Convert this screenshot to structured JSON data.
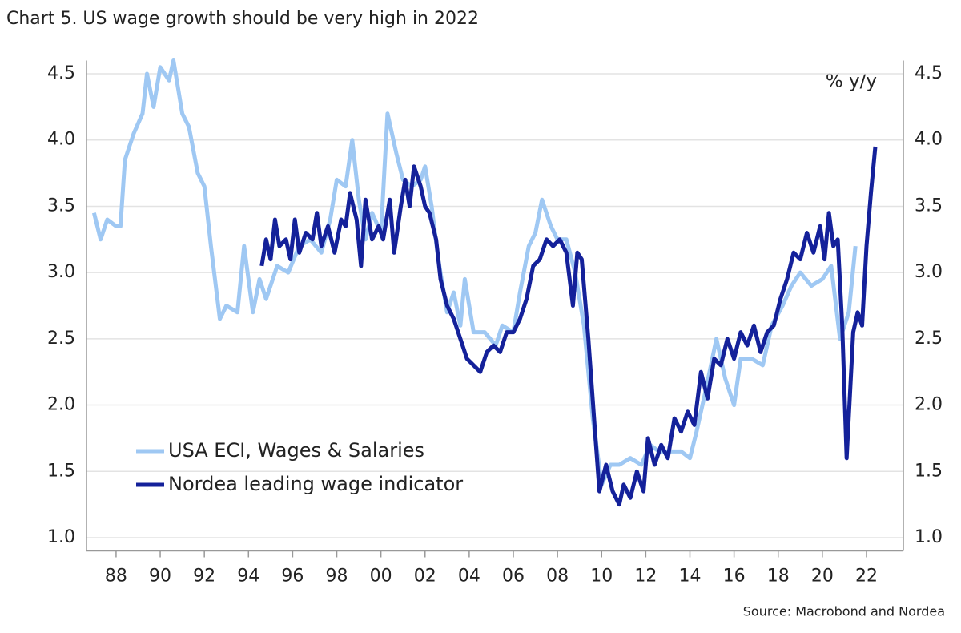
{
  "chart_data": {
    "type": "line",
    "title": "Chart 5. US wage growth should be very high in 2022",
    "annotation": "% y/y",
    "source": "Source: Macrobond and Nordea",
    "xlim": [
      1986.66,
      2023.67
    ],
    "xticks": [
      {
        "value": 1988,
        "label": "88"
      },
      {
        "value": 1990,
        "label": "90"
      },
      {
        "value": 1992,
        "label": "92"
      },
      {
        "value": 1994,
        "label": "94"
      },
      {
        "value": 1996,
        "label": "96"
      },
      {
        "value": 1998,
        "label": "98"
      },
      {
        "value": 2000,
        "label": "00"
      },
      {
        "value": 2002,
        "label": "02"
      },
      {
        "value": 2004,
        "label": "04"
      },
      {
        "value": 2006,
        "label": "06"
      },
      {
        "value": 2008,
        "label": "08"
      },
      {
        "value": 2010,
        "label": "10"
      },
      {
        "value": 2012,
        "label": "12"
      },
      {
        "value": 2014,
        "label": "14"
      },
      {
        "value": 2016,
        "label": "16"
      },
      {
        "value": 2018,
        "label": "18"
      },
      {
        "value": 2020,
        "label": "20"
      },
      {
        "value": 2022,
        "label": "22"
      }
    ],
    "ylim": [
      0.9,
      4.6
    ],
    "yticks": [
      {
        "value": 1,
        "label": "1.0"
      },
      1.5,
      {
        "value": 2,
        "label": "2.0"
      },
      2.5,
      {
        "value": 3,
        "label": "3.0"
      },
      3.5,
      {
        "value": 4,
        "label": "4.0"
      },
      4.5
    ],
    "grid": true,
    "series": [
      {
        "name": "USA ECI, Wages & Salaries",
        "color": "#9fc8f3",
        "x": [
          1987.0,
          1987.3,
          1987.6,
          1988.0,
          1988.2,
          1988.4,
          1988.8,
          1989.2,
          1989.4,
          1989.7,
          1990.0,
          1990.4,
          1990.6,
          1991.0,
          1991.3,
          1991.7,
          1992.0,
          1992.3,
          1992.7,
          1993.0,
          1993.5,
          1993.8,
          1994.2,
          1994.5,
          1994.8,
          1995.3,
          1995.8,
          1996.3,
          1996.8,
          1997.3,
          1997.7,
          1998.0,
          1998.4,
          1998.7,
          1999.0,
          1999.3,
          1999.6,
          2000.0,
          2000.3,
          2000.7,
          2001.0,
          2001.4,
          2001.8,
          2002.0,
          2002.3,
          2002.6,
          2003.0,
          2003.3,
          2003.6,
          2003.8,
          2004.2,
          2004.7,
          2005.2,
          2005.5,
          2006.0,
          2006.3,
          2006.7,
          2007.0,
          2007.3,
          2007.7,
          2008.0,
          2008.4,
          2008.8,
          2009.2,
          2009.6,
          2010.0,
          2010.4,
          2010.8,
          2011.3,
          2011.8,
          2012.2,
          2012.6,
          2013.0,
          2013.6,
          2014.0,
          2014.3,
          2014.7,
          2015.2,
          2015.6,
          2016.0,
          2016.3,
          2016.8,
          2017.3,
          2017.7,
          2018.2,
          2018.6,
          2019.0,
          2019.5,
          2020.0,
          2020.4,
          2020.8,
          2021.2,
          2021.5
        ],
        "values": [
          3.45,
          3.25,
          3.4,
          3.35,
          3.35,
          3.85,
          4.05,
          4.2,
          4.5,
          4.25,
          4.55,
          4.45,
          4.6,
          4.2,
          4.1,
          3.75,
          3.65,
          3.2,
          2.65,
          2.75,
          2.7,
          3.2,
          2.7,
          2.95,
          2.8,
          3.05,
          3.0,
          3.2,
          3.25,
          3.15,
          3.4,
          3.7,
          3.65,
          4.0,
          3.55,
          3.25,
          3.45,
          3.3,
          4.2,
          3.9,
          3.7,
          3.65,
          3.7,
          3.8,
          3.5,
          3.1,
          2.7,
          2.85,
          2.6,
          2.95,
          2.55,
          2.55,
          2.45,
          2.6,
          2.55,
          2.85,
          3.2,
          3.3,
          3.55,
          3.35,
          3.25,
          3.25,
          3.0,
          2.6,
          1.9,
          1.4,
          1.55,
          1.55,
          1.6,
          1.55,
          1.7,
          1.65,
          1.65,
          1.65,
          1.6,
          1.8,
          2.1,
          2.5,
          2.2,
          2.0,
          2.35,
          2.35,
          2.3,
          2.6,
          2.75,
          2.9,
          3.0,
          2.9,
          2.95,
          3.05,
          2.5,
          2.7,
          3.2
        ]
      },
      {
        "name": "Nordea leading wage indicator",
        "color": "#14219a",
        "x": [
          1994.6,
          1994.8,
          1995.0,
          1995.2,
          1995.4,
          1995.7,
          1995.9,
          1996.1,
          1996.3,
          1996.6,
          1996.9,
          1997.1,
          1997.3,
          1997.6,
          1997.9,
          1998.2,
          1998.4,
          1998.6,
          1998.9,
          1999.1,
          1999.3,
          1999.6,
          1999.9,
          2000.1,
          2000.4,
          2000.6,
          2000.9,
          2001.1,
          2001.3,
          2001.5,
          2001.8,
          2002.0,
          2002.2,
          2002.5,
          2002.7,
          2003.0,
          2003.3,
          2003.6,
          2003.9,
          2004.2,
          2004.5,
          2004.8,
          2005.1,
          2005.4,
          2005.7,
          2006.0,
          2006.3,
          2006.6,
          2006.9,
          2007.2,
          2007.5,
          2007.8,
          2008.1,
          2008.4,
          2008.7,
          2008.9,
          2009.1,
          2009.4,
          2009.7,
          2009.9,
          2010.2,
          2010.5,
          2010.8,
          2011.0,
          2011.3,
          2011.6,
          2011.9,
          2012.1,
          2012.4,
          2012.7,
          2013.0,
          2013.3,
          2013.6,
          2013.9,
          2014.2,
          2014.5,
          2014.8,
          2015.1,
          2015.4,
          2015.7,
          2016.0,
          2016.3,
          2016.6,
          2016.9,
          2017.2,
          2017.5,
          2017.8,
          2018.1,
          2018.4,
          2018.7,
          2019.0,
          2019.3,
          2019.6,
          2019.9,
          2020.1,
          2020.3,
          2020.5,
          2020.7,
          2020.9,
          2021.1,
          2021.4,
          2021.6,
          2021.8,
          2022.0,
          2022.2,
          2022.4
        ],
        "values": [
          3.05,
          3.25,
          3.1,
          3.4,
          3.2,
          3.25,
          3.1,
          3.4,
          3.15,
          3.3,
          3.25,
          3.45,
          3.2,
          3.35,
          3.15,
          3.4,
          3.35,
          3.6,
          3.4,
          3.05,
          3.55,
          3.25,
          3.35,
          3.25,
          3.55,
          3.15,
          3.5,
          3.7,
          3.5,
          3.8,
          3.65,
          3.5,
          3.45,
          3.25,
          2.95,
          2.75,
          2.65,
          2.5,
          2.35,
          2.3,
          2.25,
          2.4,
          2.45,
          2.4,
          2.55,
          2.55,
          2.65,
          2.8,
          3.05,
          3.1,
          3.25,
          3.2,
          3.25,
          3.15,
          2.75,
          3.15,
          3.1,
          2.5,
          1.8,
          1.35,
          1.55,
          1.35,
          1.25,
          1.4,
          1.3,
          1.5,
          1.35,
          1.75,
          1.55,
          1.7,
          1.6,
          1.9,
          1.8,
          1.95,
          1.85,
          2.25,
          2.05,
          2.35,
          2.3,
          2.5,
          2.35,
          2.55,
          2.45,
          2.6,
          2.4,
          2.55,
          2.6,
          2.8,
          2.95,
          3.15,
          3.1,
          3.3,
          3.15,
          3.35,
          3.1,
          3.45,
          3.2,
          3.25,
          2.6,
          1.6,
          2.55,
          2.7,
          2.6,
          3.2,
          3.6,
          3.95
        ]
      }
    ]
  }
}
